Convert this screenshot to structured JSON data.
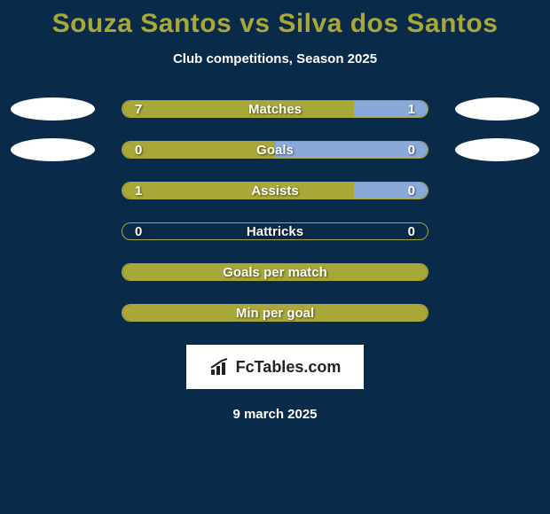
{
  "title": "Souza Santos vs Silva dos Santos",
  "subtitle": "Club competitions, Season 2025",
  "date": "9 march 2025",
  "logo_text": "FcTables.com",
  "colors": {
    "background": "#0a2a4a",
    "accent": "#a8a838",
    "right_fill": "#8aa8d8",
    "ellipse": "#ffffff",
    "text": "#ffffff"
  },
  "bar_track_width": 346,
  "bar_track_height": 20,
  "rows": [
    {
      "label": "Matches",
      "left_value": "7",
      "right_value": "1",
      "left_pct": 76,
      "right_pct": 24,
      "show_left_ellipse": true,
      "show_right_ellipse": true,
      "show_values": true,
      "full_fill": false
    },
    {
      "label": "Goals",
      "left_value": "0",
      "right_value": "0",
      "left_pct": 50,
      "right_pct": 50,
      "show_left_ellipse": true,
      "show_right_ellipse": true,
      "show_values": true,
      "full_fill": false
    },
    {
      "label": "Assists",
      "left_value": "1",
      "right_value": "0",
      "left_pct": 76,
      "right_pct": 24,
      "show_left_ellipse": false,
      "show_right_ellipse": false,
      "show_values": true,
      "full_fill": false
    },
    {
      "label": "Hattricks",
      "left_value": "0",
      "right_value": "0",
      "left_pct": 0,
      "right_pct": 0,
      "show_left_ellipse": false,
      "show_right_ellipse": false,
      "show_values": true,
      "full_fill": false
    },
    {
      "label": "Goals per match",
      "left_value": "",
      "right_value": "",
      "left_pct": 0,
      "right_pct": 0,
      "show_left_ellipse": false,
      "show_right_ellipse": false,
      "show_values": false,
      "full_fill": true
    },
    {
      "label": "Min per goal",
      "left_value": "",
      "right_value": "",
      "left_pct": 0,
      "right_pct": 0,
      "show_left_ellipse": false,
      "show_right_ellipse": false,
      "show_values": false,
      "full_fill": true
    }
  ]
}
